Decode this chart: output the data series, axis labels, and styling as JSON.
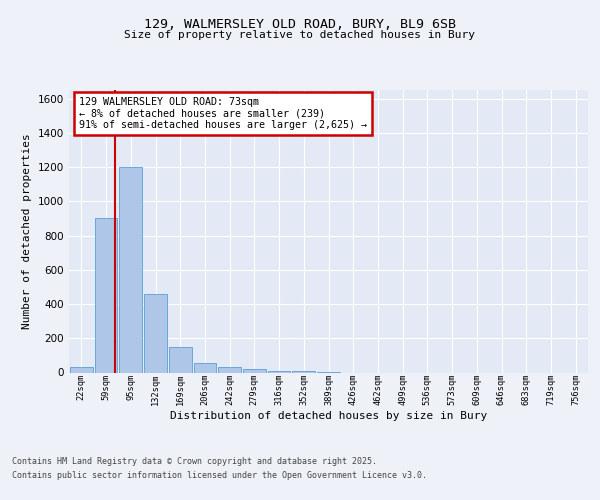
{
  "title_line1": "129, WALMERSLEY OLD ROAD, BURY, BL9 6SB",
  "title_line2": "Size of property relative to detached houses in Bury",
  "xlabel": "Distribution of detached houses by size in Bury",
  "ylabel": "Number of detached properties",
  "bin_labels": [
    "22sqm",
    "59sqm",
    "95sqm",
    "132sqm",
    "169sqm",
    "206sqm",
    "242sqm",
    "279sqm",
    "316sqm",
    "352sqm",
    "389sqm",
    "426sqm",
    "462sqm",
    "499sqm",
    "536sqm",
    "573sqm",
    "609sqm",
    "646sqm",
    "683sqm",
    "719sqm",
    "756sqm"
  ],
  "bar_values": [
    30,
    900,
    1200,
    460,
    150,
    55,
    30,
    20,
    10,
    10,
    3,
    0,
    0,
    0,
    0,
    0,
    0,
    0,
    0,
    0,
    0
  ],
  "bar_color": "#aec6e8",
  "bar_edge_color": "#5a9fd4",
  "vline_color": "#cc0000",
  "ylim": [
    0,
    1650
  ],
  "yticks": [
    0,
    200,
    400,
    600,
    800,
    1000,
    1200,
    1400,
    1600
  ],
  "annotation_text": "129 WALMERSLEY OLD ROAD: 73sqm\n← 8% of detached houses are smaller (239)\n91% of semi-detached houses are larger (2,625) →",
  "annotation_box_color": "#cc0000",
  "footer_line1": "Contains HM Land Registry data © Crown copyright and database right 2025.",
  "footer_line2": "Contains public sector information licensed under the Open Government Licence v3.0.",
  "bg_color": "#eef1f8",
  "plot_bg_color": "#e4eaf5",
  "vline_x_index": 1.38
}
